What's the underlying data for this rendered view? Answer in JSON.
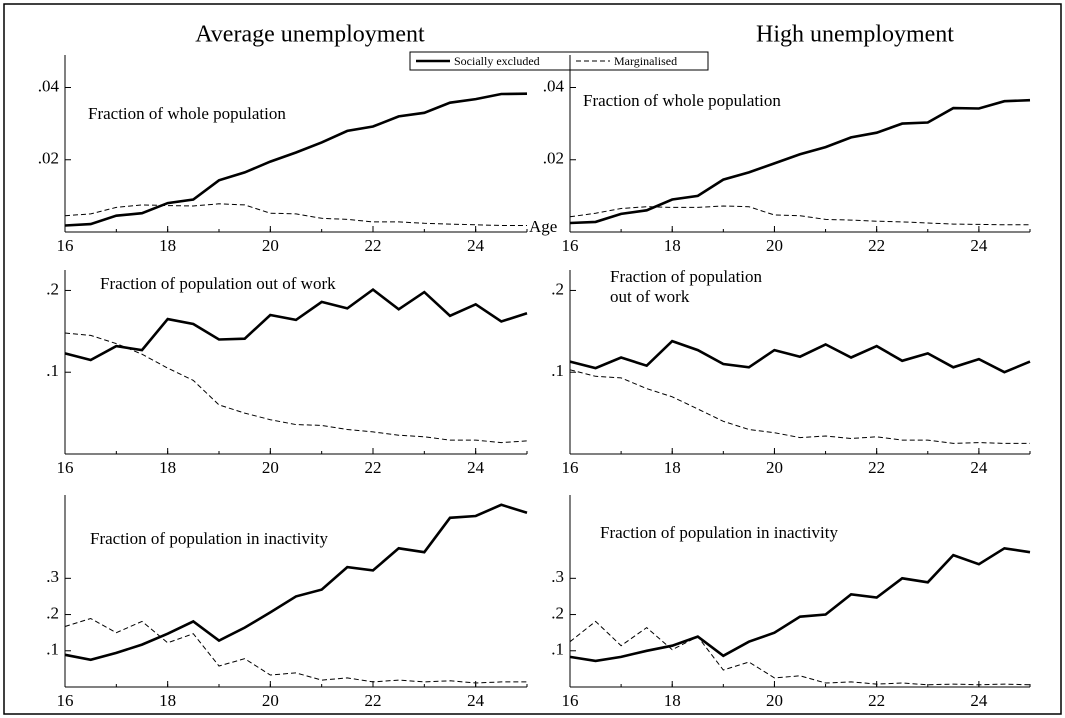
{
  "chart_data": [
    {
      "type": "line",
      "title": "Average unemployment",
      "annotation": "Fraction of whole population",
      "xlabel": "Age",
      "legend": "top",
      "x": [
        16,
        16.5,
        17,
        17.5,
        18,
        18.5,
        19,
        19.5,
        20,
        20.5,
        21,
        21.5,
        22,
        22.5,
        23,
        23.5,
        24,
        24.5,
        25
      ],
      "xlim": [
        16,
        25
      ],
      "xticks": [
        16,
        18,
        20,
        22,
        24
      ],
      "ylim": [
        0,
        0.049
      ],
      "yticks": [
        {
          "value": 0.02,
          "label": ".02"
        },
        {
          "value": 0.04,
          "label": ".04"
        }
      ],
      "series": [
        {
          "name": "Socially excluded",
          "color": "#000000",
          "style": "solid",
          "values": [
            0.0018,
            0.0022,
            0.0045,
            0.0052,
            0.008,
            0.009,
            0.0143,
            0.0165,
            0.0195,
            0.022,
            0.0248,
            0.028,
            0.0292,
            0.032,
            0.033,
            0.0358,
            0.0368,
            0.0382,
            0.0383
          ]
        },
        {
          "name": "Marginalised",
          "color": "#000000",
          "style": "dashed",
          "values": [
            0.0045,
            0.005,
            0.0068,
            0.0075,
            0.0073,
            0.0072,
            0.0078,
            0.0075,
            0.0052,
            0.005,
            0.0038,
            0.0035,
            0.0028,
            0.0028,
            0.0024,
            0.0022,
            0.002,
            0.0018,
            0.0018
          ]
        }
      ]
    },
    {
      "type": "line",
      "title": "High unemployment",
      "annotation": "Fraction of whole population",
      "x": [
        16,
        16.5,
        17,
        17.5,
        18,
        18.5,
        19,
        19.5,
        20,
        20.5,
        21,
        21.5,
        22,
        22.5,
        23,
        23.5,
        24,
        24.5,
        25
      ],
      "xlim": [
        16,
        25
      ],
      "xticks": [
        16,
        18,
        20,
        22,
        24
      ],
      "ylim": [
        0,
        0.049
      ],
      "yticks": [
        {
          "value": 0.02,
          "label": ".02"
        },
        {
          "value": 0.04,
          "label": ".04"
        }
      ],
      "series": [
        {
          "color": "#000000",
          "style": "solid",
          "values": [
            0.0025,
            0.0028,
            0.005,
            0.006,
            0.009,
            0.01,
            0.0145,
            0.0165,
            0.019,
            0.0215,
            0.0235,
            0.0262,
            0.0275,
            0.03,
            0.0303,
            0.0343,
            0.0342,
            0.0362,
            0.0365
          ]
        },
        {
          "color": "#000000",
          "style": "dashed",
          "values": [
            0.0042,
            0.0052,
            0.0065,
            0.007,
            0.0068,
            0.0068,
            0.0072,
            0.007,
            0.0047,
            0.0045,
            0.0035,
            0.0033,
            0.003,
            0.0028,
            0.0025,
            0.0022,
            0.0021,
            0.002,
            0.002
          ]
        }
      ]
    },
    {
      "type": "line",
      "annotation": "Fraction of population out of work",
      "x": [
        16,
        16.5,
        17,
        17.5,
        18,
        18.5,
        19,
        19.5,
        20,
        20.5,
        21,
        21.5,
        22,
        22.5,
        23,
        23.5,
        24,
        24.5,
        25
      ],
      "xlim": [
        16,
        25
      ],
      "xticks": [
        16,
        18,
        20,
        22,
        24
      ],
      "ylim": [
        0,
        0.225
      ],
      "yticks": [
        {
          "value": 0.1,
          "label": ".1"
        },
        {
          "value": 0.2,
          "label": ".2"
        }
      ],
      "series": [
        {
          "color": "#000000",
          "style": "solid",
          "values": [
            0.123,
            0.115,
            0.132,
            0.127,
            0.165,
            0.159,
            0.14,
            0.141,
            0.17,
            0.164,
            0.186,
            0.178,
            0.201,
            0.177,
            0.198,
            0.169,
            0.183,
            0.162,
            0.172
          ]
        },
        {
          "color": "#000000",
          "style": "dashed",
          "values": [
            0.148,
            0.145,
            0.135,
            0.122,
            0.105,
            0.09,
            0.06,
            0.05,
            0.042,
            0.036,
            0.035,
            0.03,
            0.027,
            0.023,
            0.021,
            0.017,
            0.017,
            0.014,
            0.016
          ]
        }
      ]
    },
    {
      "type": "line",
      "annotation": [
        "Fraction of population",
        "out of work"
      ],
      "x": [
        16,
        16.5,
        17,
        17.5,
        18,
        18.5,
        19,
        19.5,
        20,
        20.5,
        21,
        21.5,
        22,
        22.5,
        23,
        23.5,
        24,
        24.5,
        25
      ],
      "xlim": [
        16,
        25
      ],
      "xticks": [
        16,
        18,
        20,
        22,
        24
      ],
      "ylim": [
        0,
        0.225
      ],
      "yticks": [
        {
          "value": 0.1,
          "label": ".1"
        },
        {
          "value": 0.2,
          "label": ".2"
        }
      ],
      "series": [
        {
          "color": "#000000",
          "style": "solid",
          "values": [
            0.113,
            0.105,
            0.118,
            0.108,
            0.138,
            0.127,
            0.11,
            0.106,
            0.127,
            0.119,
            0.134,
            0.118,
            0.132,
            0.114,
            0.123,
            0.106,
            0.116,
            0.1,
            0.113
          ]
        },
        {
          "color": "#000000",
          "style": "dashed",
          "values": [
            0.103,
            0.095,
            0.093,
            0.08,
            0.07,
            0.055,
            0.04,
            0.03,
            0.026,
            0.02,
            0.022,
            0.019,
            0.021,
            0.017,
            0.017,
            0.013,
            0.014,
            0.013,
            0.013
          ]
        }
      ]
    },
    {
      "type": "line",
      "annotation": "Fraction of population in inactivity",
      "x": [
        16,
        16.5,
        17,
        17.5,
        18,
        18.5,
        19,
        19.5,
        20,
        20.5,
        21,
        21.5,
        22,
        22.5,
        23,
        23.5,
        24,
        24.5,
        25
      ],
      "xlim": [
        16,
        25
      ],
      "xticks": [
        16,
        18,
        20,
        22,
        24
      ],
      "ylim": [
        0,
        0.53
      ],
      "yticks": [
        {
          "value": 0.1,
          "label": ".1"
        },
        {
          "value": 0.2,
          "label": ".2"
        },
        {
          "value": 0.3,
          "label": ".3"
        }
      ],
      "series": [
        {
          "color": "#000000",
          "style": "solid",
          "values": [
            0.089,
            0.075,
            0.094,
            0.117,
            0.147,
            0.181,
            0.128,
            0.164,
            0.206,
            0.25,
            0.269,
            0.331,
            0.322,
            0.383,
            0.372,
            0.467,
            0.472,
            0.503,
            0.481
          ]
        },
        {
          "color": "#000000",
          "style": "dashed",
          "values": [
            0.167,
            0.189,
            0.15,
            0.181,
            0.122,
            0.147,
            0.058,
            0.078,
            0.033,
            0.039,
            0.019,
            0.025,
            0.014,
            0.019,
            0.014,
            0.017,
            0.011,
            0.014,
            0.014
          ]
        }
      ]
    },
    {
      "type": "line",
      "annotation": "Fraction of population in inactivity",
      "x": [
        16,
        16.5,
        17,
        17.5,
        18,
        18.5,
        19,
        19.5,
        20,
        20.5,
        21,
        21.5,
        22,
        22.5,
        23,
        23.5,
        24,
        24.5,
        25
      ],
      "xlim": [
        16,
        25
      ],
      "xticks": [
        16,
        18,
        20,
        22,
        24
      ],
      "ylim": [
        0,
        0.53
      ],
      "yticks": [
        {
          "value": 0.1,
          "label": ".1"
        },
        {
          "value": 0.2,
          "label": ".2"
        },
        {
          "value": 0.3,
          "label": ".3"
        }
      ],
      "series": [
        {
          "color": "#000000",
          "style": "solid",
          "values": [
            0.083,
            0.072,
            0.083,
            0.1,
            0.114,
            0.139,
            0.086,
            0.125,
            0.15,
            0.194,
            0.2,
            0.256,
            0.247,
            0.3,
            0.289,
            0.364,
            0.339,
            0.383,
            0.372
          ]
        },
        {
          "color": "#000000",
          "style": "dashed",
          "values": [
            0.125,
            0.181,
            0.114,
            0.164,
            0.103,
            0.139,
            0.047,
            0.069,
            0.025,
            0.031,
            0.011,
            0.014,
            0.008,
            0.011,
            0.006,
            0.008,
            0.006,
            0.008,
            0.006
          ]
        }
      ]
    }
  ]
}
